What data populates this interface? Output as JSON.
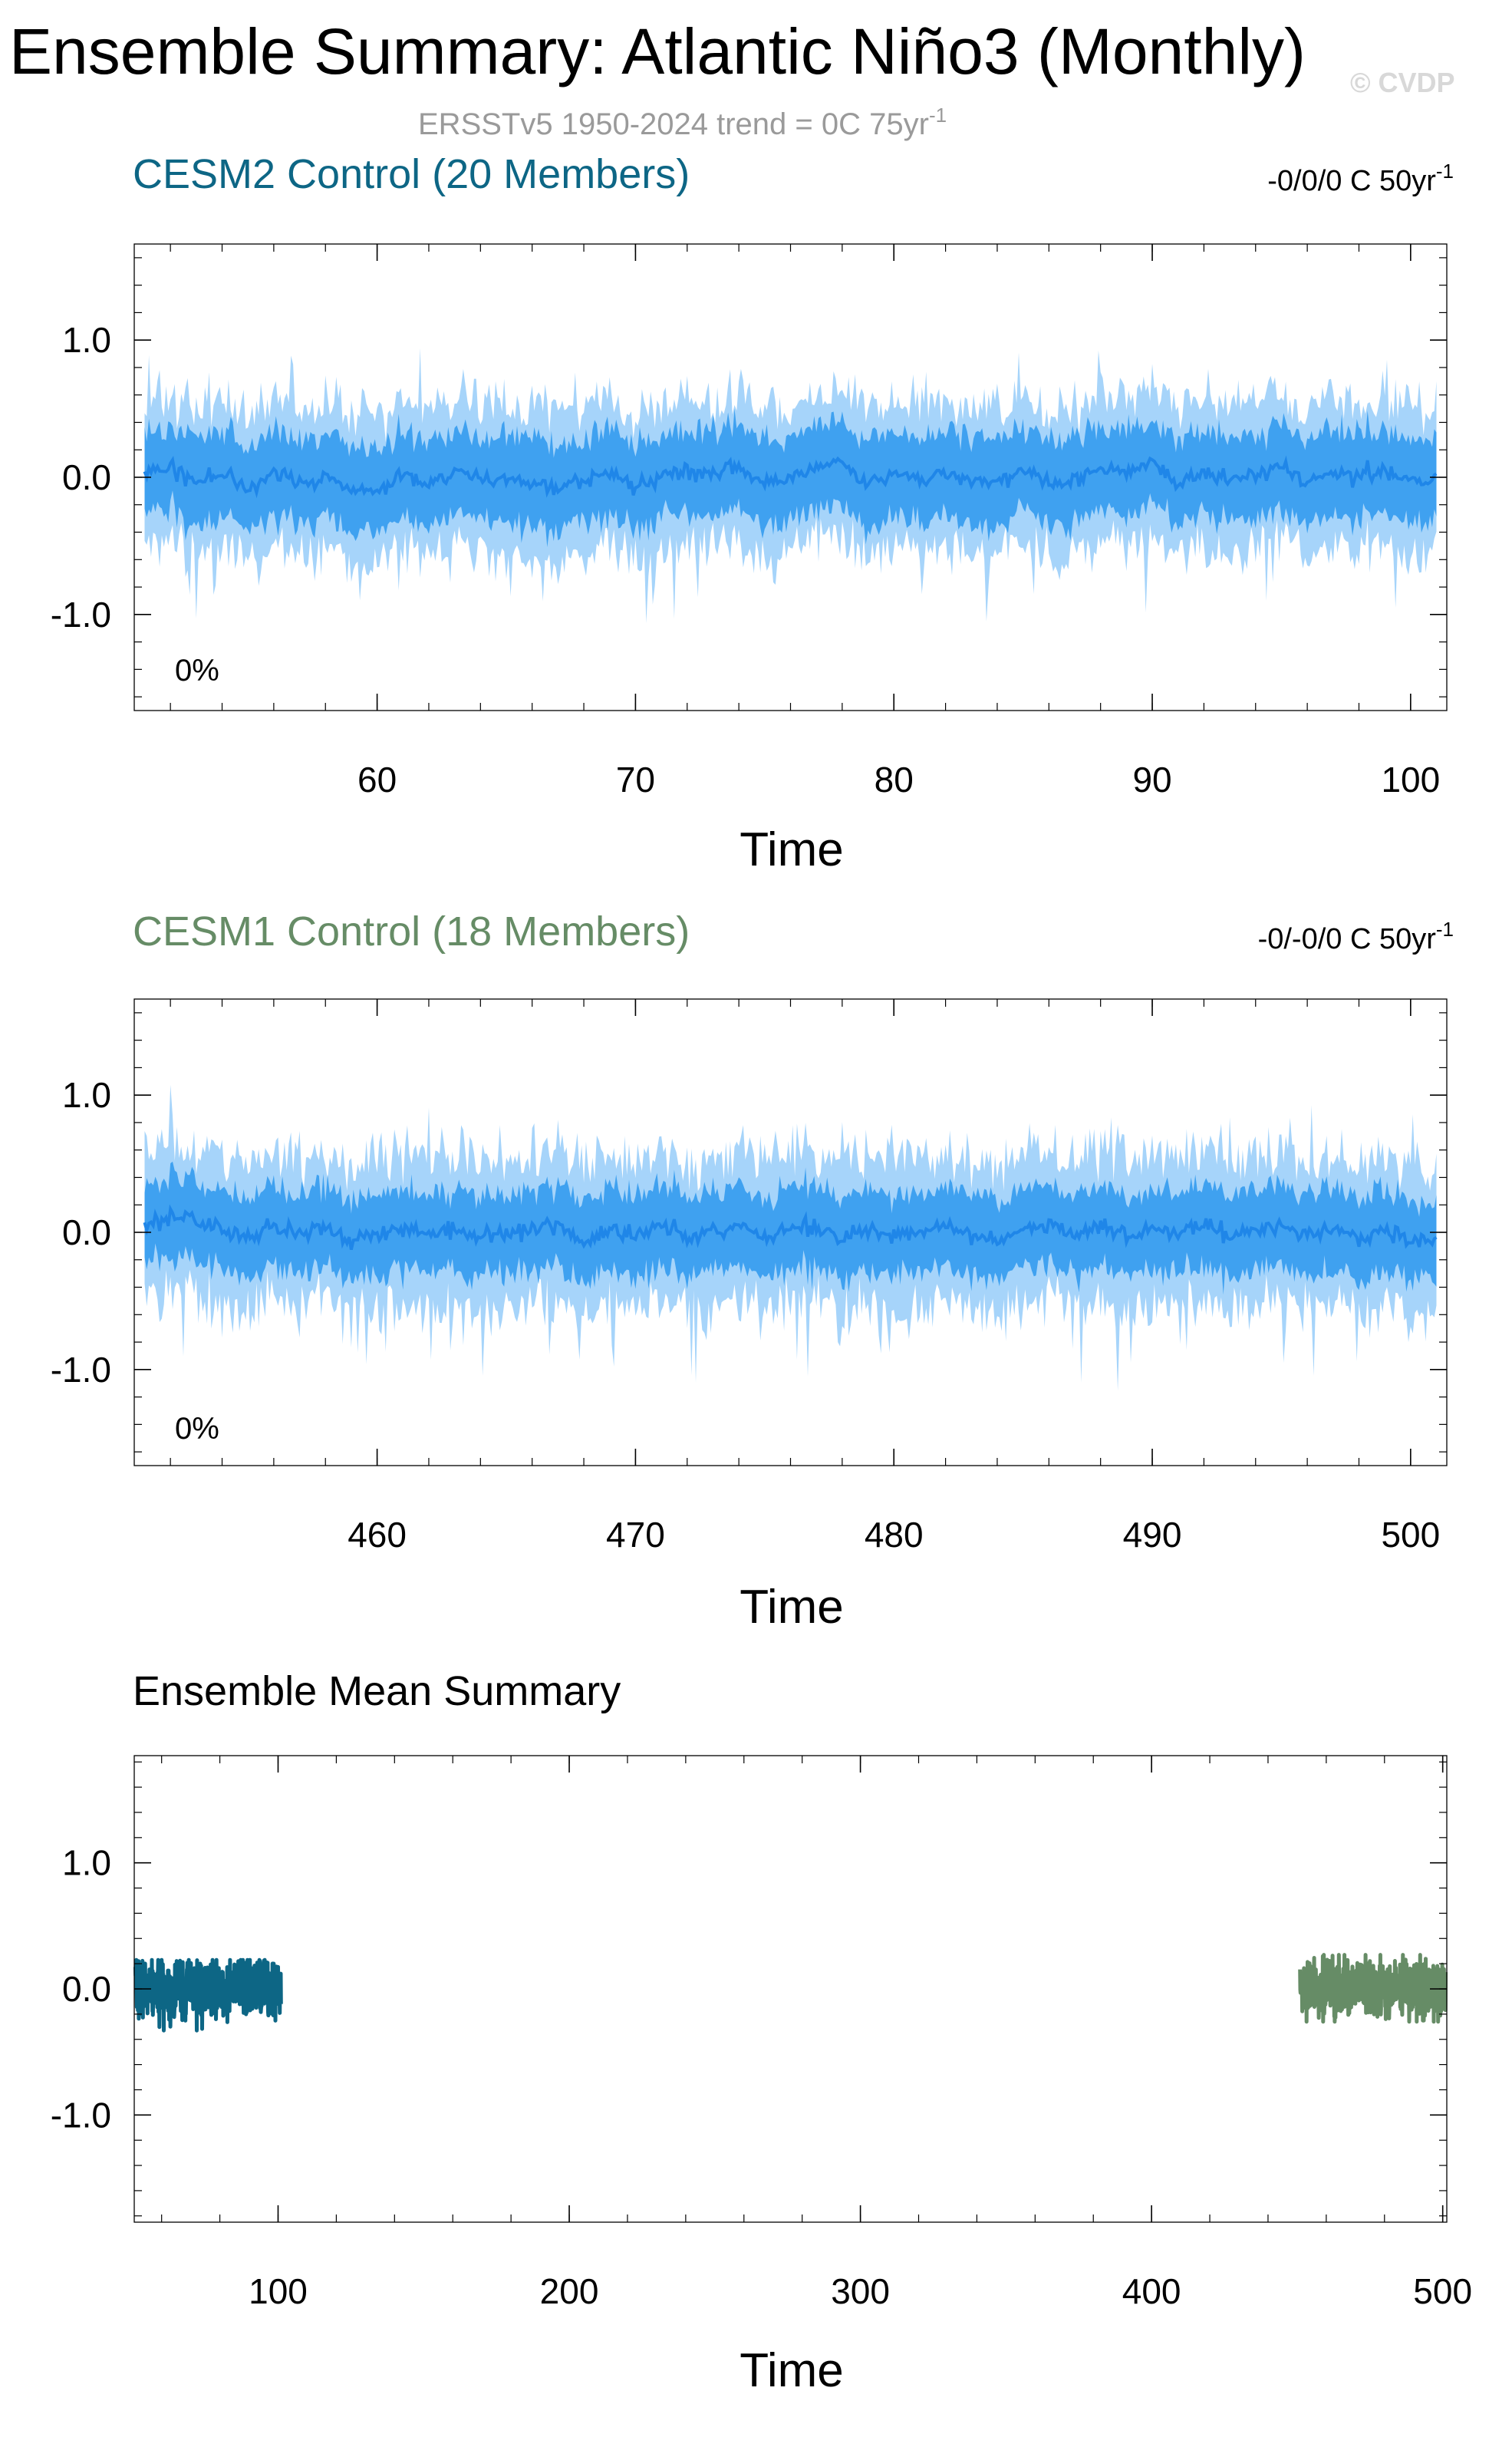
{
  "figure": {
    "title": "Ensemble Summary: Atlantic Niño3 (Monthly)",
    "watermark": "© CVDP",
    "subtitle": {
      "text": "ERSSTv5 1950-2024 trend = 0C 75yr",
      "sup": "-1"
    }
  },
  "colors": {
    "band_outer": "#a6d4fa",
    "band_inner": "#3fa1f0",
    "band_mean": "#1f86e8",
    "cesm2": "#0d6685",
    "cesm1": "#668c66",
    "subtitle": "#9a9a9a"
  },
  "chart_data": [
    {
      "type": "area",
      "title": "CESM2 Control (20 Members)",
      "trend_label": {
        "text": "-0/0/0 C 50yr",
        "sup": "-1"
      },
      "inset_label": "0%",
      "xlabel": "Time",
      "ylabel": "",
      "xlim": [
        50.6,
        101.4
      ],
      "ylim": [
        -1.7,
        1.7
      ],
      "xticks": [
        60,
        70,
        80,
        90,
        100
      ],
      "xtick_labels": [
        "60",
        "70",
        "80",
        "90",
        "100"
      ],
      "yticks": [
        1.0,
        0.0,
        -1.0
      ],
      "ytick_labels": [
        "1.0",
        "0.0",
        "-1.0"
      ],
      "x_start": 51,
      "x_end": 101,
      "months_per_unit": 12,
      "mean_anchors": [
        0.02,
        0.08,
        -0.05,
        0.03,
        -0.1,
        0.06,
        -0.04,
        0.0,
        -0.08,
        -0.12,
        0.02,
        -0.05,
        0.04,
        -0.02,
        0.0,
        -0.04,
        -0.06,
        -0.02,
        0.03,
        -0.08,
        0.0,
        0.04,
        0.02,
        0.06,
        -0.04,
        0.0,
        0.07,
        0.12,
        -0.06,
        0.02,
        -0.02,
        0.04,
        -0.03,
        -0.02,
        0.05,
        -0.04,
        -0.03,
        0.06,
        0.02,
        0.12,
        -0.05,
        0.03,
        -0.02,
        0.03,
        0.08,
        -0.04,
        0.03,
        0.02,
        0.05,
        -0.04,
        -0.05
      ],
      "inner_spread": [
        0.26,
        0.36
      ],
      "outer_spread": [
        0.44,
        0.62
      ],
      "noise_seed": 17
    },
    {
      "type": "area",
      "title": "CESM1 Control (18 Members)",
      "trend_label": {
        "text": "-0/-0/0 C 50yr",
        "sup": "-1"
      },
      "inset_label": "0%",
      "xlabel": "Time",
      "ylabel": "",
      "xlim": [
        450.6,
        501.4
      ],
      "ylim": [
        -1.7,
        1.7
      ],
      "xticks": [
        460,
        470,
        480,
        490,
        500
      ],
      "xtick_labels": [
        "460",
        "470",
        "480",
        "490",
        "500"
      ],
      "yticks": [
        1.0,
        0.0,
        -1.0
      ],
      "ytick_labels": [
        "1.0",
        "0.0",
        "-1.0"
      ],
      "x_start": 451,
      "x_end": 501,
      "months_per_unit": 12,
      "mean_anchors": [
        0.05,
        0.12,
        0.08,
        0.02,
        -0.04,
        0.05,
        -0.02,
        0.03,
        -0.06,
        0.0,
        0.02,
        -0.03,
        0.04,
        -0.05,
        0.01,
        0.02,
        0.06,
        -0.08,
        0.03,
        -0.02,
        0.05,
        -0.04,
        0.02,
        0.06,
        -0.03,
        0.04,
        0.02,
        -0.05,
        0.03,
        -0.02,
        0.0,
        0.04,
        -0.02,
        -0.05,
        0.02,
        0.05,
        -0.03,
        0.04,
        -0.02,
        0.02,
        0.0,
        0.06,
        -0.04,
        0.03,
        0.05,
        -0.02,
        0.03,
        -0.05,
        0.02,
        -0.06,
        -0.05
      ],
      "inner_spread": [
        0.24,
        0.34
      ],
      "outer_spread": [
        0.42,
        0.66
      ],
      "noise_seed": 43
    },
    {
      "type": "line",
      "title": "Ensemble Mean Summary",
      "xlabel": "Time",
      "ylabel": "",
      "xlim": [
        50.6,
        501.4
      ],
      "ylim": [
        -1.85,
        1.85
      ],
      "xticks": [
        100,
        200,
        300,
        400,
        500
      ],
      "xtick_labels": [
        "100",
        "200",
        "300",
        "400",
        "500"
      ],
      "yticks": [
        1.0,
        0.0,
        -1.0
      ],
      "ytick_labels": [
        "1.0",
        "0.0",
        "-1.0"
      ],
      "series": [
        {
          "color_key": "cesm2",
          "x_start": 51,
          "x_end": 101,
          "seed": 7,
          "amp": 0.12,
          "min_value": -0.33,
          "max_value": 0.23
        },
        {
          "color_key": "cesm1",
          "x_start": 451,
          "x_end": 501,
          "seed": 29,
          "amp": 0.11,
          "min_value": -0.26,
          "max_value": 0.27
        }
      ]
    }
  ]
}
